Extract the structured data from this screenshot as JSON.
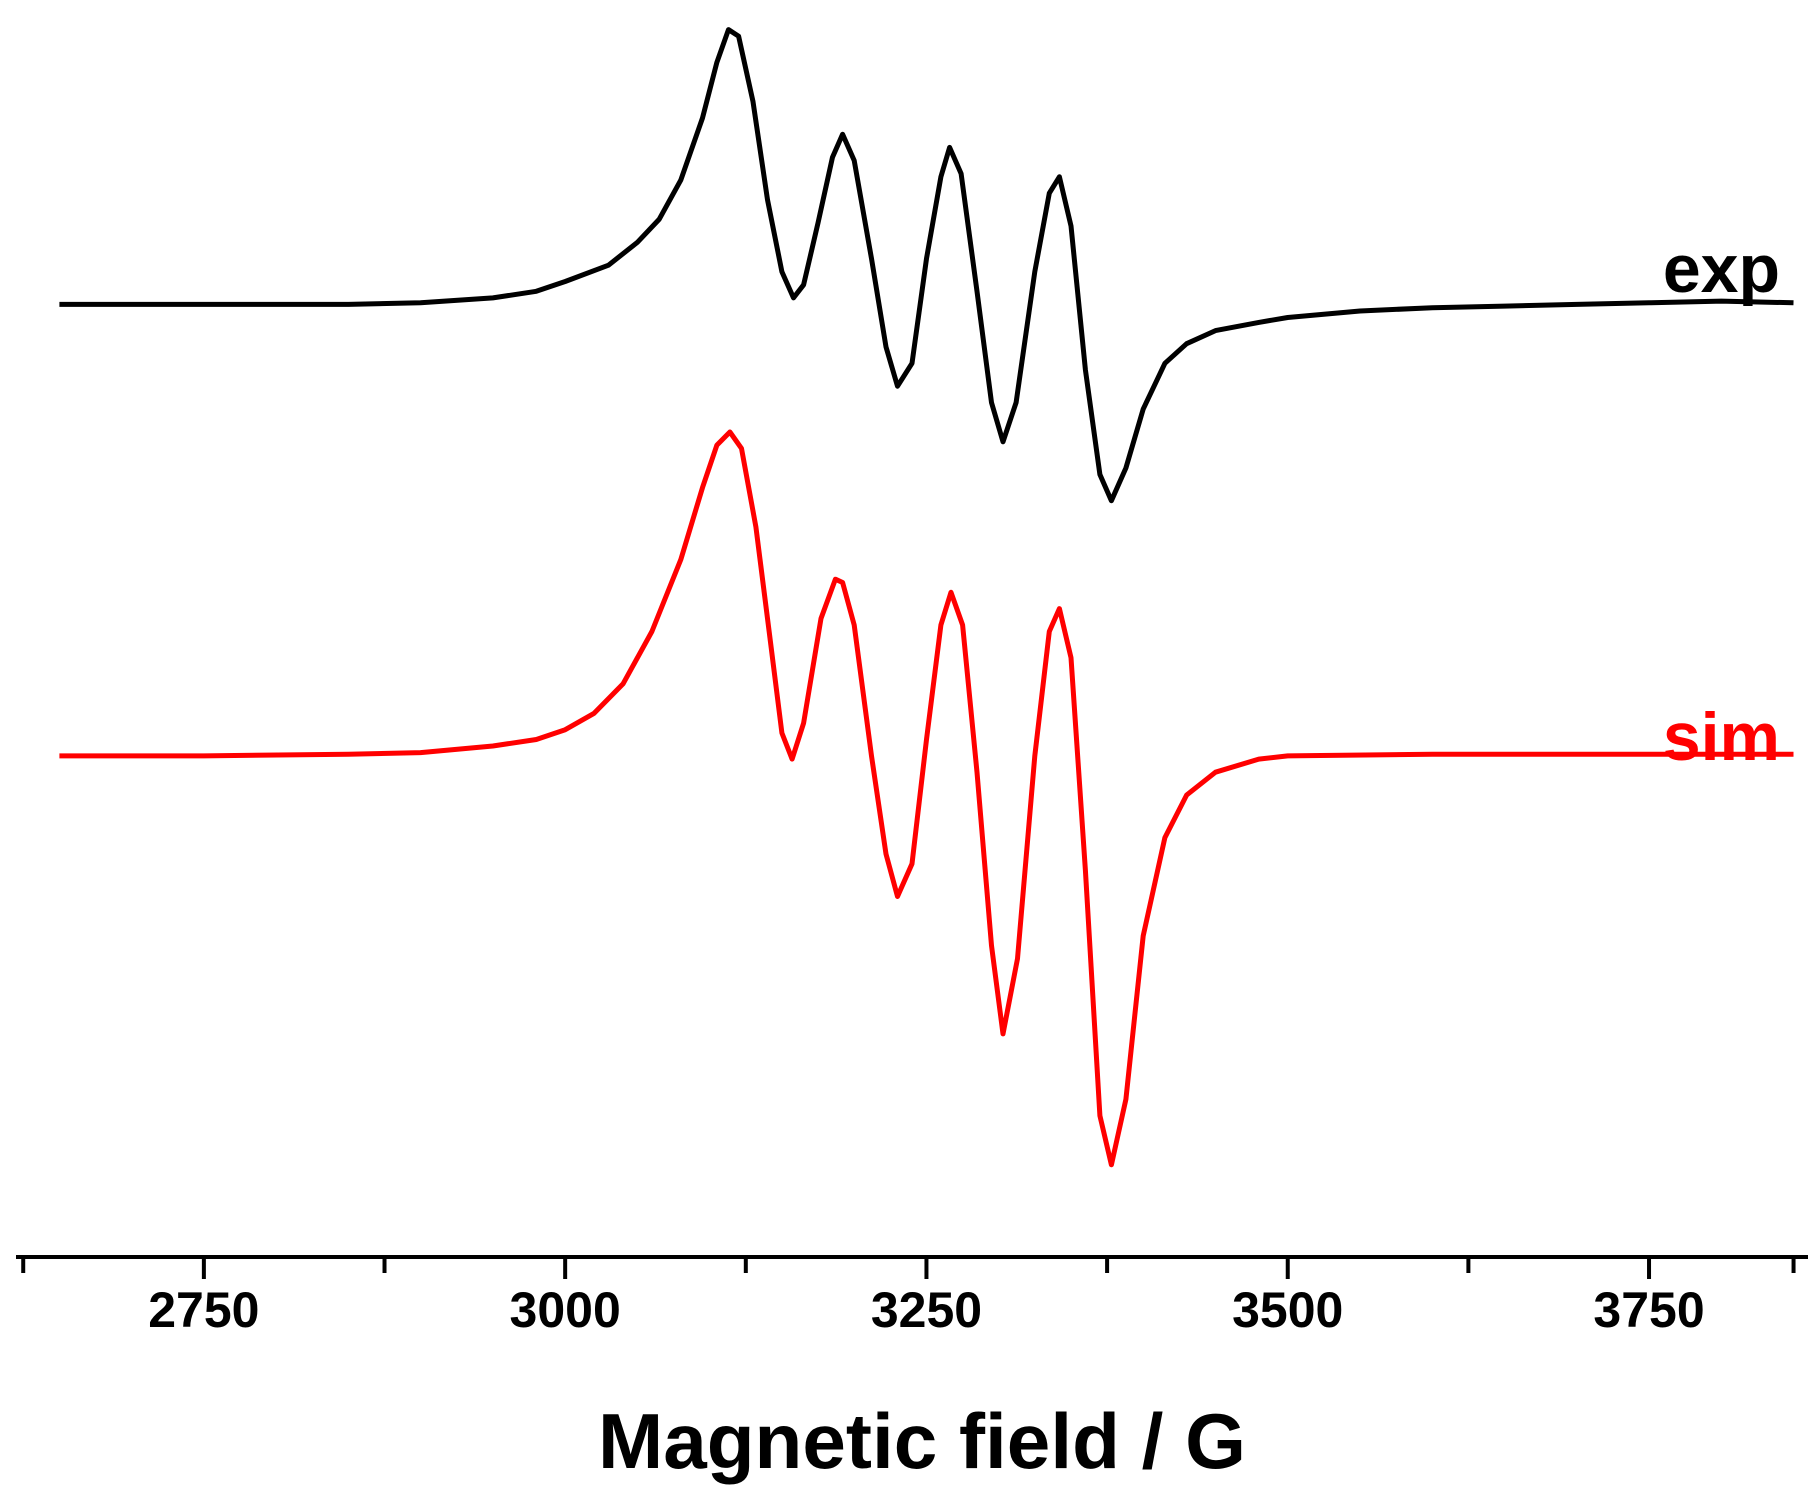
{
  "chart_data": {
    "type": "line",
    "xlabel": "Magnetic field / G",
    "ylabel": "",
    "xlim": [
      2620,
      3860
    ],
    "ylim": [
      -1.48,
      2.28
    ],
    "xticks": [
      2750,
      3000,
      3250,
      3500,
      3750
    ],
    "xticks_minor": [
      2625,
      2875,
      3125,
      3375,
      3625,
      3850
    ],
    "grid": false,
    "legend": "inline-right",
    "series": [
      {
        "name": "exp",
        "color": "#000000",
        "points": [
          [
            2650,
            1.38
          ],
          [
            2700,
            1.38
          ],
          [
            2750,
            1.38
          ],
          [
            2800,
            1.38
          ],
          [
            2850,
            1.38
          ],
          [
            2900,
            1.385
          ],
          [
            2950,
            1.4
          ],
          [
            2980,
            1.42
          ],
          [
            3000,
            1.45
          ],
          [
            3030,
            1.5
          ],
          [
            3050,
            1.57
          ],
          [
            3065,
            1.64
          ],
          [
            3080,
            1.76
          ],
          [
            3095,
            1.95
          ],
          [
            3105,
            2.12
          ],
          [
            3113,
            2.22
          ],
          [
            3120,
            2.2
          ],
          [
            3130,
            2.0
          ],
          [
            3140,
            1.7
          ],
          [
            3150,
            1.48
          ],
          [
            3158,
            1.4
          ],
          [
            3165,
            1.44
          ],
          [
            3175,
            1.63
          ],
          [
            3185,
            1.83
          ],
          [
            3192,
            1.9
          ],
          [
            3200,
            1.82
          ],
          [
            3212,
            1.52
          ],
          [
            3222,
            1.25
          ],
          [
            3230,
            1.13
          ],
          [
            3240,
            1.2
          ],
          [
            3250,
            1.52
          ],
          [
            3260,
            1.77
          ],
          [
            3266,
            1.86
          ],
          [
            3274,
            1.78
          ],
          [
            3285,
            1.42
          ],
          [
            3295,
            1.08
          ],
          [
            3303,
            0.96
          ],
          [
            3312,
            1.08
          ],
          [
            3325,
            1.48
          ],
          [
            3335,
            1.72
          ],
          [
            3342,
            1.77
          ],
          [
            3350,
            1.62
          ],
          [
            3360,
            1.18
          ],
          [
            3370,
            0.86
          ],
          [
            3378,
            0.78
          ],
          [
            3388,
            0.88
          ],
          [
            3400,
            1.06
          ],
          [
            3415,
            1.2
          ],
          [
            3430,
            1.26
          ],
          [
            3450,
            1.3
          ],
          [
            3480,
            1.325
          ],
          [
            3500,
            1.34
          ],
          [
            3550,
            1.36
          ],
          [
            3600,
            1.37
          ],
          [
            3650,
            1.375
          ],
          [
            3700,
            1.38
          ],
          [
            3750,
            1.385
          ],
          [
            3800,
            1.39
          ],
          [
            3850,
            1.385
          ]
        ]
      },
      {
        "name": "sim",
        "color": "#ff0000",
        "points": [
          [
            2650,
            0.0
          ],
          [
            2750,
            0.0
          ],
          [
            2850,
            0.005
          ],
          [
            2900,
            0.01
          ],
          [
            2950,
            0.03
          ],
          [
            2980,
            0.05
          ],
          [
            3000,
            0.08
          ],
          [
            3020,
            0.13
          ],
          [
            3040,
            0.22
          ],
          [
            3060,
            0.38
          ],
          [
            3080,
            0.6
          ],
          [
            3095,
            0.82
          ],
          [
            3105,
            0.95
          ],
          [
            3114,
            0.99
          ],
          [
            3122,
            0.94
          ],
          [
            3132,
            0.7
          ],
          [
            3142,
            0.35
          ],
          [
            3150,
            0.07
          ],
          [
            3157,
            -0.01
          ],
          [
            3165,
            0.1
          ],
          [
            3177,
            0.42
          ],
          [
            3187,
            0.54
          ],
          [
            3192,
            0.53
          ],
          [
            3200,
            0.4
          ],
          [
            3212,
            0.0
          ],
          [
            3222,
            -0.3
          ],
          [
            3230,
            -0.43
          ],
          [
            3240,
            -0.33
          ],
          [
            3250,
            0.05
          ],
          [
            3260,
            0.4
          ],
          [
            3267,
            0.5
          ],
          [
            3275,
            0.4
          ],
          [
            3285,
            -0.05
          ],
          [
            3295,
            -0.58
          ],
          [
            3303,
            -0.85
          ],
          [
            3313,
            -0.62
          ],
          [
            3325,
            0.0
          ],
          [
            3335,
            0.38
          ],
          [
            3342,
            0.45
          ],
          [
            3350,
            0.3
          ],
          [
            3360,
            -0.35
          ],
          [
            3370,
            -1.1
          ],
          [
            3378,
            -1.25
          ],
          [
            3388,
            -1.05
          ],
          [
            3400,
            -0.55
          ],
          [
            3415,
            -0.25
          ],
          [
            3430,
            -0.12
          ],
          [
            3450,
            -0.05
          ],
          [
            3480,
            -0.01
          ],
          [
            3500,
            0.0
          ],
          [
            3600,
            0.005
          ],
          [
            3700,
            0.005
          ],
          [
            3850,
            0.005
          ]
        ]
      }
    ]
  }
}
